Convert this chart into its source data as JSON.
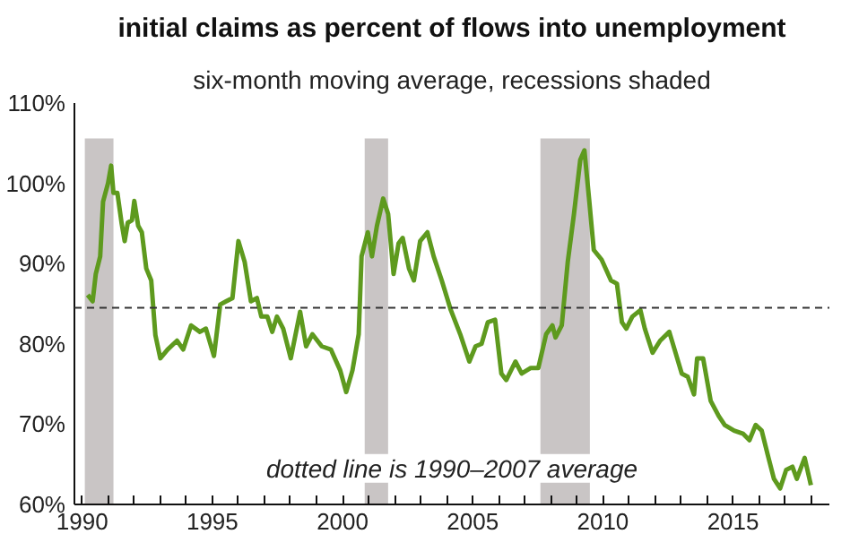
{
  "chart_data": {
    "type": "line",
    "title": "initial claims as percent of flows into unemployment",
    "subtitle": "six-month moving average, recessions shaded",
    "annotations": [
      "dotted line is 1990–2007 average"
    ],
    "x": [
      1990.21,
      1990.4,
      1990.52,
      1990.69,
      1990.8,
      1990.99,
      1991.11,
      1991.2,
      1991.35,
      1991.51,
      1991.63,
      1991.75,
      1991.91,
      1992.0,
      1992.15,
      1992.29,
      1992.46,
      1992.65,
      1992.81,
      1993.0,
      1993.28,
      1993.64,
      1993.88,
      1994.18,
      1994.52,
      1994.75,
      1995.06,
      1995.3,
      1995.53,
      1995.77,
      1996.0,
      1996.24,
      1996.48,
      1996.71,
      1996.88,
      1997.11,
      1997.3,
      1997.48,
      1997.72,
      1998.01,
      1998.37,
      1998.6,
      1998.84,
      1999.2,
      1999.55,
      1999.91,
      2000.14,
      2000.38,
      2000.62,
      2000.73,
      2000.97,
      2001.13,
      2001.32,
      2001.56,
      2001.75,
      2001.96,
      2002.15,
      2002.31,
      2002.55,
      2002.74,
      2002.98,
      2003.26,
      2003.5,
      2003.81,
      2004.16,
      2004.52,
      2004.87,
      2005.11,
      2005.34,
      2005.58,
      2005.86,
      2006.1,
      2006.29,
      2006.64,
      2006.88,
      2007.23,
      2007.52,
      2007.82,
      2008.06,
      2008.18,
      2008.42,
      2008.65,
      2008.89,
      2009.13,
      2009.29,
      2009.48,
      2009.65,
      2009.95,
      2010.31,
      2010.54,
      2010.73,
      2010.9,
      2011.13,
      2011.44,
      2011.61,
      2011.91,
      2012.2,
      2012.55,
      2012.79,
      2013.03,
      2013.26,
      2013.5,
      2013.62,
      2013.85,
      2014.14,
      2014.45,
      2014.68,
      2015.04,
      2015.39,
      2015.63,
      2015.87,
      2016.1,
      2016.33,
      2016.57,
      2016.81,
      2017.04,
      2017.28,
      2017.45,
      2017.75,
      2017.99
    ],
    "series": [
      {
        "color": "#5e9a1e",
        "values": [
          86.1,
          85.3,
          88.7,
          90.9,
          97.7,
          100,
          102.2,
          98.8,
          98.8,
          95.1,
          92.8,
          95.1,
          95.4,
          97.8,
          94.7,
          93.9,
          89.4,
          87.9,
          81.1,
          78.2,
          79.3,
          80.4,
          79.3,
          82.3,
          81.5,
          81.9,
          78.5,
          84.9,
          85.3,
          85.7,
          92.8,
          90.2,
          85.3,
          85.7,
          83.4,
          83.4,
          81.5,
          83.4,
          81.9,
          78.2,
          84.0,
          79.7,
          81.2,
          79.7,
          79.3,
          76.7,
          74.0,
          76.7,
          81.2,
          90.9,
          93.9,
          90.9,
          94.7,
          98.1,
          96.2,
          88.7,
          92.5,
          93.2,
          89.4,
          87.9,
          92.8,
          93.9,
          90.9,
          87.9,
          84.2,
          81.2,
          77.8,
          79.7,
          80.0,
          82.7,
          83.0,
          76.3,
          75.5,
          77.8,
          76.3,
          77.0,
          77.0,
          81.2,
          82.3,
          80.8,
          82.3,
          90.2,
          96.2,
          102.9,
          104.1,
          97.7,
          91.7,
          90.5,
          87.9,
          87.5,
          82.7,
          81.9,
          83.4,
          84.2,
          81.9,
          78.9,
          80.4,
          81.5,
          78.9,
          76.3,
          75.9,
          73.7,
          78.2,
          78.2,
          72.9,
          71.0,
          69.9,
          69.2,
          68.8,
          68.0,
          69.9,
          69.2,
          66.2,
          63.2,
          62.0,
          64.3,
          64.7,
          63.2,
          65.8,
          62.4
        ]
      }
    ],
    "xlim": [
      1989.7,
      2018.7
    ],
    "ylim": [
      60,
      110
    ],
    "xticks": [
      1990,
      {
        "value": 1991,
        "label": null
      },
      {
        "value": 1992,
        "label": null
      },
      {
        "value": 1993,
        "label": null
      },
      {
        "value": 1994,
        "label": null
      },
      1995,
      {
        "value": 1996,
        "label": null
      },
      {
        "value": 1997,
        "label": null
      },
      {
        "value": 1998,
        "label": null
      },
      {
        "value": 1999,
        "label": null
      },
      2000,
      {
        "value": 2001,
        "label": null
      },
      {
        "value": 2002,
        "label": null
      },
      {
        "value": 2003,
        "label": null
      },
      {
        "value": 2004,
        "label": null
      },
      2005,
      {
        "value": 2006,
        "label": null
      },
      {
        "value": 2007,
        "label": null
      },
      {
        "value": 2008,
        "label": null
      },
      {
        "value": 2009,
        "label": null
      },
      2010,
      {
        "value": 2011,
        "label": null
      },
      {
        "value": 2012,
        "label": null
      },
      {
        "value": 2013,
        "label": null
      },
      {
        "value": 2014,
        "label": null
      },
      2015,
      {
        "value": 2016,
        "label": null
      },
      {
        "value": 2017,
        "label": null
      },
      {
        "value": 2018,
        "label": null
      }
    ],
    "yticks": [
      {
        "value": 60,
        "label": "60%"
      },
      {
        "value": 70,
        "label": "70%"
      },
      {
        "value": 80,
        "label": "80%"
      },
      {
        "value": 90,
        "label": "90%"
      },
      {
        "value": 100,
        "label": "100%"
      },
      {
        "value": 110,
        "label": "110%"
      }
    ],
    "ref_lines": [
      {
        "axis": "y",
        "value": 84.5,
        "color": "#333333",
        "line_style": "dashed"
      }
    ],
    "bands": [
      {
        "axis": "x",
        "from": 1990.1,
        "to": 1991.2,
        "color": "#c9c5c5"
      },
      {
        "axis": "x",
        "from": 2000.85,
        "to": 2001.75,
        "color": "#c9c5c5"
      },
      {
        "axis": "x",
        "from": 2007.6,
        "to": 2009.5,
        "color": "#c9c5c5"
      }
    ],
    "grid": false,
    "line_style": "solid",
    "marker": "none"
  }
}
